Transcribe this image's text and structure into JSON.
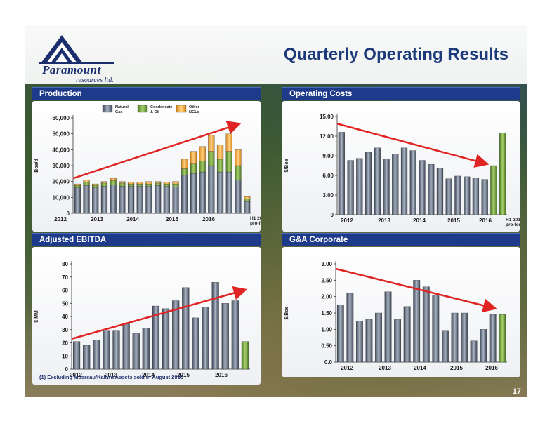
{
  "page": {
    "title": "Quarterly Operating Results",
    "page_number": "17",
    "footnote": "(1) Excluding Musreau/Kakwa Assets sold in August 2016"
  },
  "logo": {
    "name": "Paramount",
    "subtitle": "resources ltd."
  },
  "colors": {
    "header_blue": "#1d3b8a",
    "gas": "#5d6a7e",
    "oil": "#6f9e3c",
    "ngl": "#f0a434",
    "arrow": "#e02424",
    "highlight_bar": "#6f9e3c"
  },
  "panels": {
    "production": "Production",
    "operating_costs": "Operating Costs",
    "ebitda": "Adjusted EBITDA",
    "ga": "G&A Corporate"
  },
  "chart_data": [
    {
      "id": "production",
      "type": "bar",
      "stacked": true,
      "ylabel": "Boe/d",
      "ylim": [
        0,
        60000
      ],
      "yticks": [
        "0",
        "10,000",
        "20,000",
        "30,000",
        "40,000",
        "50,000",
        "60,000"
      ],
      "xticks": [
        "2012",
        "2013",
        "2014",
        "2015",
        "2016"
      ],
      "extra_xtick": [
        "H1 2016",
        "pro-forma(1)"
      ],
      "legend": [
        {
          "name": "Natural Gas",
          "lines": [
            "Natural",
            "Gas"
          ],
          "color": "#5d6a7e"
        },
        {
          "name": "Condensate & Oil",
          "lines": [
            "Condensate",
            "& Oil"
          ],
          "color": "#6f9e3c"
        },
        {
          "name": "Other NGLs",
          "lines": [
            "Other",
            "NGLs"
          ],
          "color": "#f0a434"
        }
      ],
      "series": [
        {
          "name": "Natural Gas",
          "values": [
            16000,
            17500,
            16000,
            17000,
            18000,
            17000,
            17000,
            17000,
            17000,
            17500,
            17000,
            16500,
            24000,
            25000,
            26000,
            30000,
            26000,
            26000,
            21000,
            7500
          ]
        },
        {
          "name": "Condensate & Oil",
          "values": [
            1500,
            2000,
            1500,
            2000,
            2500,
            2000,
            1500,
            1500,
            1500,
            1500,
            1500,
            2000,
            4000,
            6000,
            7000,
            9000,
            8000,
            13000,
            9000,
            1500
          ]
        },
        {
          "name": "Other NGLs",
          "values": [
            1000,
            1500,
            1000,
            1000,
            1500,
            1000,
            1000,
            1000,
            1500,
            1000,
            1000,
            1500,
            6000,
            8000,
            9000,
            10000,
            9000,
            11000,
            10000,
            1500
          ]
        }
      ],
      "trend": {
        "from": [
          0,
          22000
        ],
        "to": [
          18.5,
          56000
        ]
      }
    },
    {
      "id": "operating_costs",
      "type": "bar",
      "ylabel": "$/Boe",
      "ylim": [
        0,
        15
      ],
      "yticks": [
        "0",
        "3.00",
        "6.00",
        "9.00",
        "12.00",
        "15.00"
      ],
      "xticks": [
        "2012",
        "2013",
        "2014",
        "2015",
        "2016"
      ],
      "extra_xtick": [
        "H1 2016",
        "pro-forma(1)"
      ],
      "values": [
        12.6,
        8.3,
        8.6,
        9.5,
        10.2,
        8.5,
        9.3,
        10.2,
        9.8,
        8.3,
        7.7,
        7.1,
        5.5,
        5.9,
        5.8,
        5.6,
        5.4,
        7.5,
        12.5
      ],
      "highlight": [
        17,
        18
      ],
      "trend": {
        "from": [
          0,
          13.9
        ],
        "to": [
          16.6,
          7.8
        ]
      }
    },
    {
      "id": "ebitda",
      "type": "bar",
      "ylabel": "$ MM",
      "ylim": [
        0,
        80
      ],
      "yticks": [
        "0",
        "10",
        "20",
        "30",
        "40",
        "50",
        "60",
        "70",
        "80"
      ],
      "xticks": [
        "2012",
        "2013",
        "2014",
        "2015",
        "2016"
      ],
      "values": [
        21,
        18,
        22,
        29,
        29,
        35,
        27,
        31,
        48,
        46,
        52,
        62,
        39,
        47,
        66,
        50,
        52,
        21
      ],
      "highlight": [
        17
      ],
      "trend": {
        "from": [
          0,
          23
        ],
        "to": [
          17.4,
          60
        ]
      }
    },
    {
      "id": "ga",
      "type": "bar",
      "ylabel": "$/Boe",
      "ylim": [
        0,
        3
      ],
      "yticks": [
        "0.0",
        "0.50",
        "1.00",
        "1.50",
        "2.00",
        "2.50",
        "3.00"
      ],
      "xticks": [
        "2012",
        "2013",
        "2014",
        "2015",
        "2016"
      ],
      "values": [
        1.75,
        2.1,
        1.25,
        1.3,
        1.5,
        2.15,
        1.3,
        1.7,
        2.5,
        2.3,
        2.05,
        0.95,
        1.5,
        1.5,
        0.65,
        1.0,
        1.45,
        1.45
      ],
      "highlight": [
        17
      ],
      "trend": {
        "from": [
          0,
          2.85
        ],
        "to": [
          16.6,
          1.65
        ]
      }
    }
  ]
}
